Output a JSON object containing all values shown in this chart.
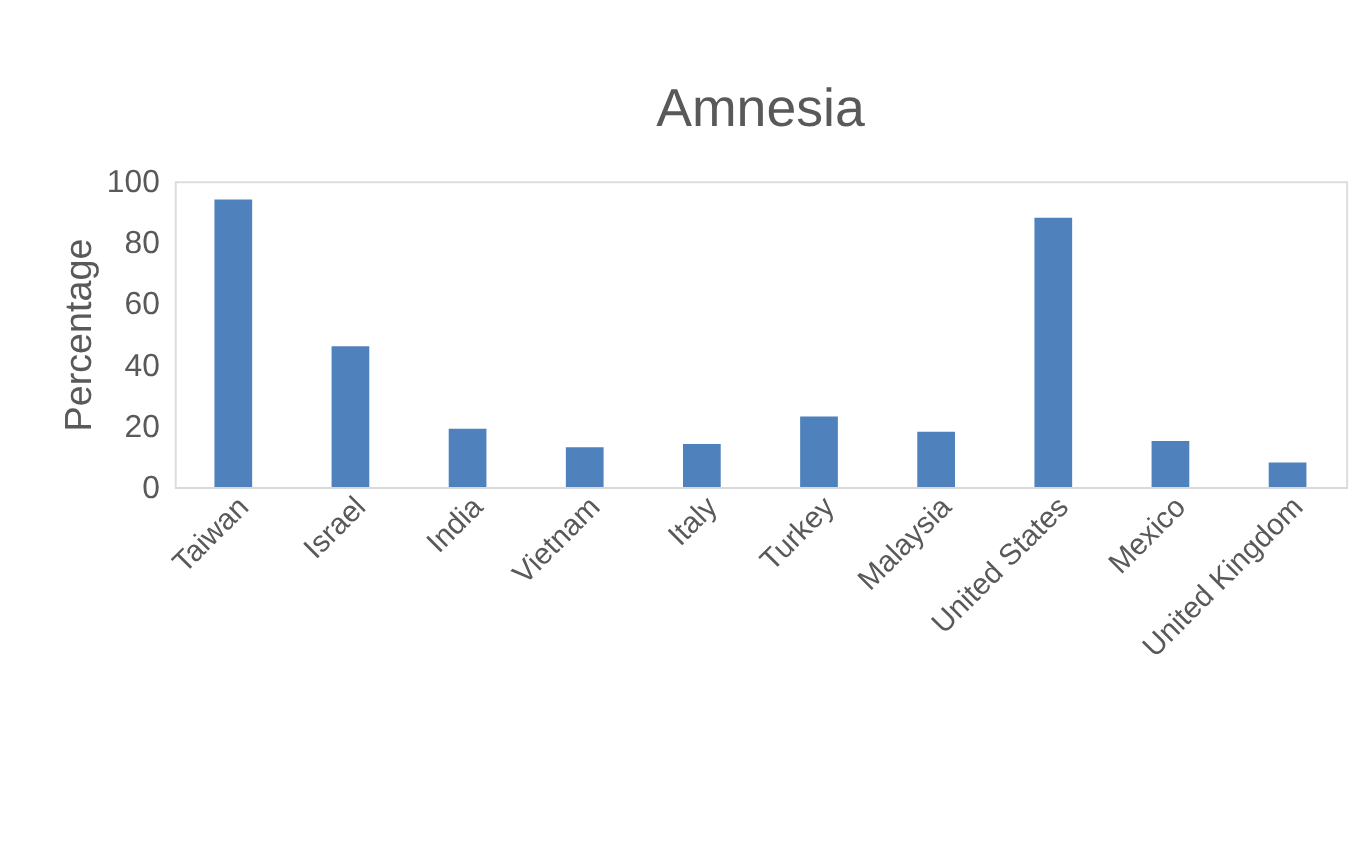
{
  "chart_data": {
    "type": "bar",
    "title": "Amnesia",
    "ylabel": "Percentage",
    "categories": [
      "Taiwan",
      "Israel",
      "India",
      "Vietnam",
      "Italy",
      "Turkey",
      "Malaysia",
      "United States",
      "Mexico",
      "United Kingdom"
    ],
    "values": [
      94,
      46,
      19,
      13,
      14,
      23,
      18,
      88,
      15,
      8
    ],
    "color": "#4f81bd",
    "ylim": [
      0,
      100
    ],
    "yticks": [
      0,
      20,
      40,
      60,
      80,
      100
    ],
    "grid": false
  }
}
